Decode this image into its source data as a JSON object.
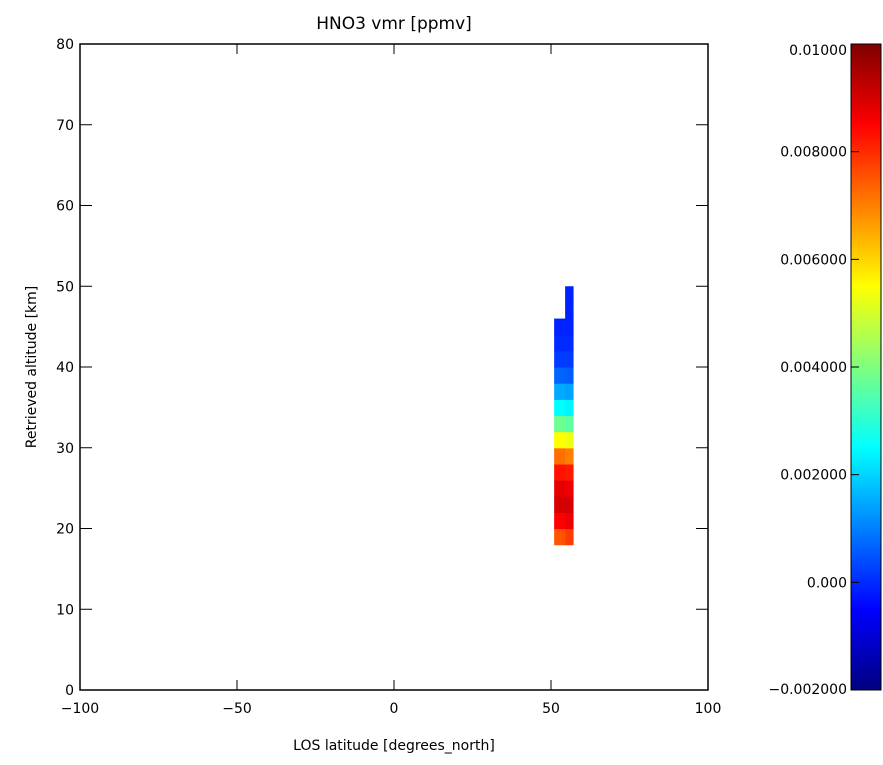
{
  "chart_data": {
    "type": "heatmap",
    "title": "HNO3 vmr [ppmv]",
    "xlabel": "LOS latitude [degrees_north]",
    "ylabel": "Retrieved altitude [km]",
    "xlim": [
      -100,
      100
    ],
    "ylim": [
      0,
      80
    ],
    "x_ticks": [
      -100,
      -50,
      0,
      50,
      100
    ],
    "x_tick_labels": [
      "−100",
      "−50",
      "0",
      "50",
      "100"
    ],
    "y_ticks": [
      0,
      10,
      20,
      30,
      40,
      50,
      60,
      70,
      80
    ],
    "y_tick_labels": [
      "0",
      "10",
      "20",
      "30",
      "40",
      "50",
      "60",
      "70",
      "80"
    ],
    "grid": false,
    "colormap": "jet",
    "colorbar": {
      "range": [
        -0.002,
        0.01
      ],
      "ticks": [
        -0.002,
        0.0,
        0.002,
        0.004,
        0.006,
        0.008,
        0.01
      ],
      "tick_labels": [
        "−0.002000",
        "0.000",
        "0.002000",
        "0.004000",
        "0.006000",
        "0.008000",
        "0.01000"
      ]
    },
    "columns": [
      {
        "lat_range": [
          51,
          54.5
        ],
        "cells": [
          {
            "alt": [
              18,
              20
            ],
            "value": 0.0075
          },
          {
            "alt": [
              20,
              22
            ],
            "value": 0.0085
          },
          {
            "alt": [
              22,
              24
            ],
            "value": 0.009
          },
          {
            "alt": [
              24,
              26
            ],
            "value": 0.0088
          },
          {
            "alt": [
              26,
              28
            ],
            "value": 0.0083
          },
          {
            "alt": [
              28,
              30
            ],
            "value": 0.0072
          },
          {
            "alt": [
              30,
              32
            ],
            "value": 0.0055
          },
          {
            "alt": [
              32,
              34
            ],
            "value": 0.0038
          },
          {
            "alt": [
              34,
              36
            ],
            "value": 0.0025
          },
          {
            "alt": [
              36,
              38
            ],
            "value": 0.0015
          },
          {
            "alt": [
              38,
              40
            ],
            "value": 0.0007
          },
          {
            "alt": [
              40,
              42
            ],
            "value": 0.0002
          },
          {
            "alt": [
              42,
              44
            ],
            "value": 0.0
          },
          {
            "alt": [
              44,
              46
            ],
            "value": -0.0001
          }
        ]
      },
      {
        "lat_range": [
          54.5,
          57
        ],
        "cells": [
          {
            "alt": [
              18,
              20
            ],
            "value": 0.0078
          },
          {
            "alt": [
              20,
              22
            ],
            "value": 0.0087
          },
          {
            "alt": [
              22,
              24
            ],
            "value": 0.009
          },
          {
            "alt": [
              24,
              26
            ],
            "value": 0.0087
          },
          {
            "alt": [
              26,
              28
            ],
            "value": 0.0082
          },
          {
            "alt": [
              28,
              30
            ],
            "value": 0.007
          },
          {
            "alt": [
              30,
              32
            ],
            "value": 0.0053
          },
          {
            "alt": [
              32,
              34
            ],
            "value": 0.0036
          },
          {
            "alt": [
              34,
              36
            ],
            "value": 0.0024
          },
          {
            "alt": [
              36,
              38
            ],
            "value": 0.0014
          },
          {
            "alt": [
              38,
              40
            ],
            "value": 0.0006
          },
          {
            "alt": [
              40,
              42
            ],
            "value": 0.0002
          },
          {
            "alt": [
              42,
              44
            ],
            "value": 0.0
          },
          {
            "alt": [
              44,
              46
            ],
            "value": -0.0001
          },
          {
            "alt": [
              46,
              48
            ],
            "value": -0.0001
          },
          {
            "alt": [
              48,
              50
            ],
            "value": -0.0001
          }
        ]
      }
    ]
  }
}
